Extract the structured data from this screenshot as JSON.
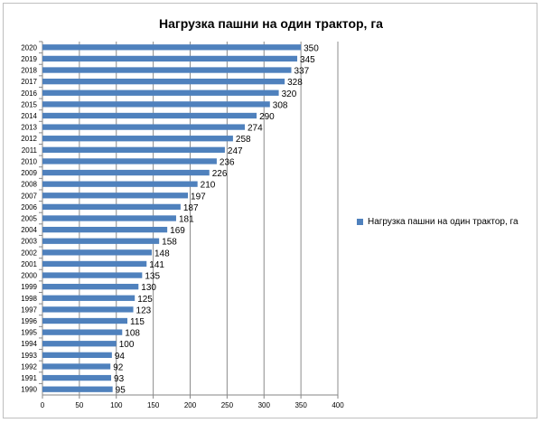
{
  "chart_data": {
    "type": "bar",
    "orientation": "horizontal",
    "title": "Нагрузка пашни на один трактор, га",
    "categories": [
      "1990",
      "1991",
      "1992",
      "1993",
      "1994",
      "1995",
      "1996",
      "1997",
      "1998",
      "1999",
      "2000",
      "2001",
      "2002",
      "2003",
      "2004",
      "2005",
      "2006",
      "2007",
      "2008",
      "2009",
      "2010",
      "2011",
      "2012",
      "2013",
      "2014",
      "2015",
      "2016",
      "2017",
      "2018",
      "2019",
      "2020"
    ],
    "series": [
      {
        "name": "Нагрузка пашни на один трактор, га",
        "color": "#4f81bd",
        "values": [
          95,
          93,
          92,
          94,
          100,
          108,
          115,
          123,
          125,
          130,
          135,
          141,
          148,
          158,
          169,
          181,
          187,
          197,
          210,
          226,
          236,
          247,
          258,
          274,
          290,
          308,
          320,
          328,
          337,
          345,
          350
        ]
      }
    ],
    "xlim": [
      0,
      400
    ],
    "xticks": [
      0,
      50,
      100,
      150,
      200,
      250,
      300,
      350,
      400
    ],
    "grid": true,
    "legend": "right"
  }
}
